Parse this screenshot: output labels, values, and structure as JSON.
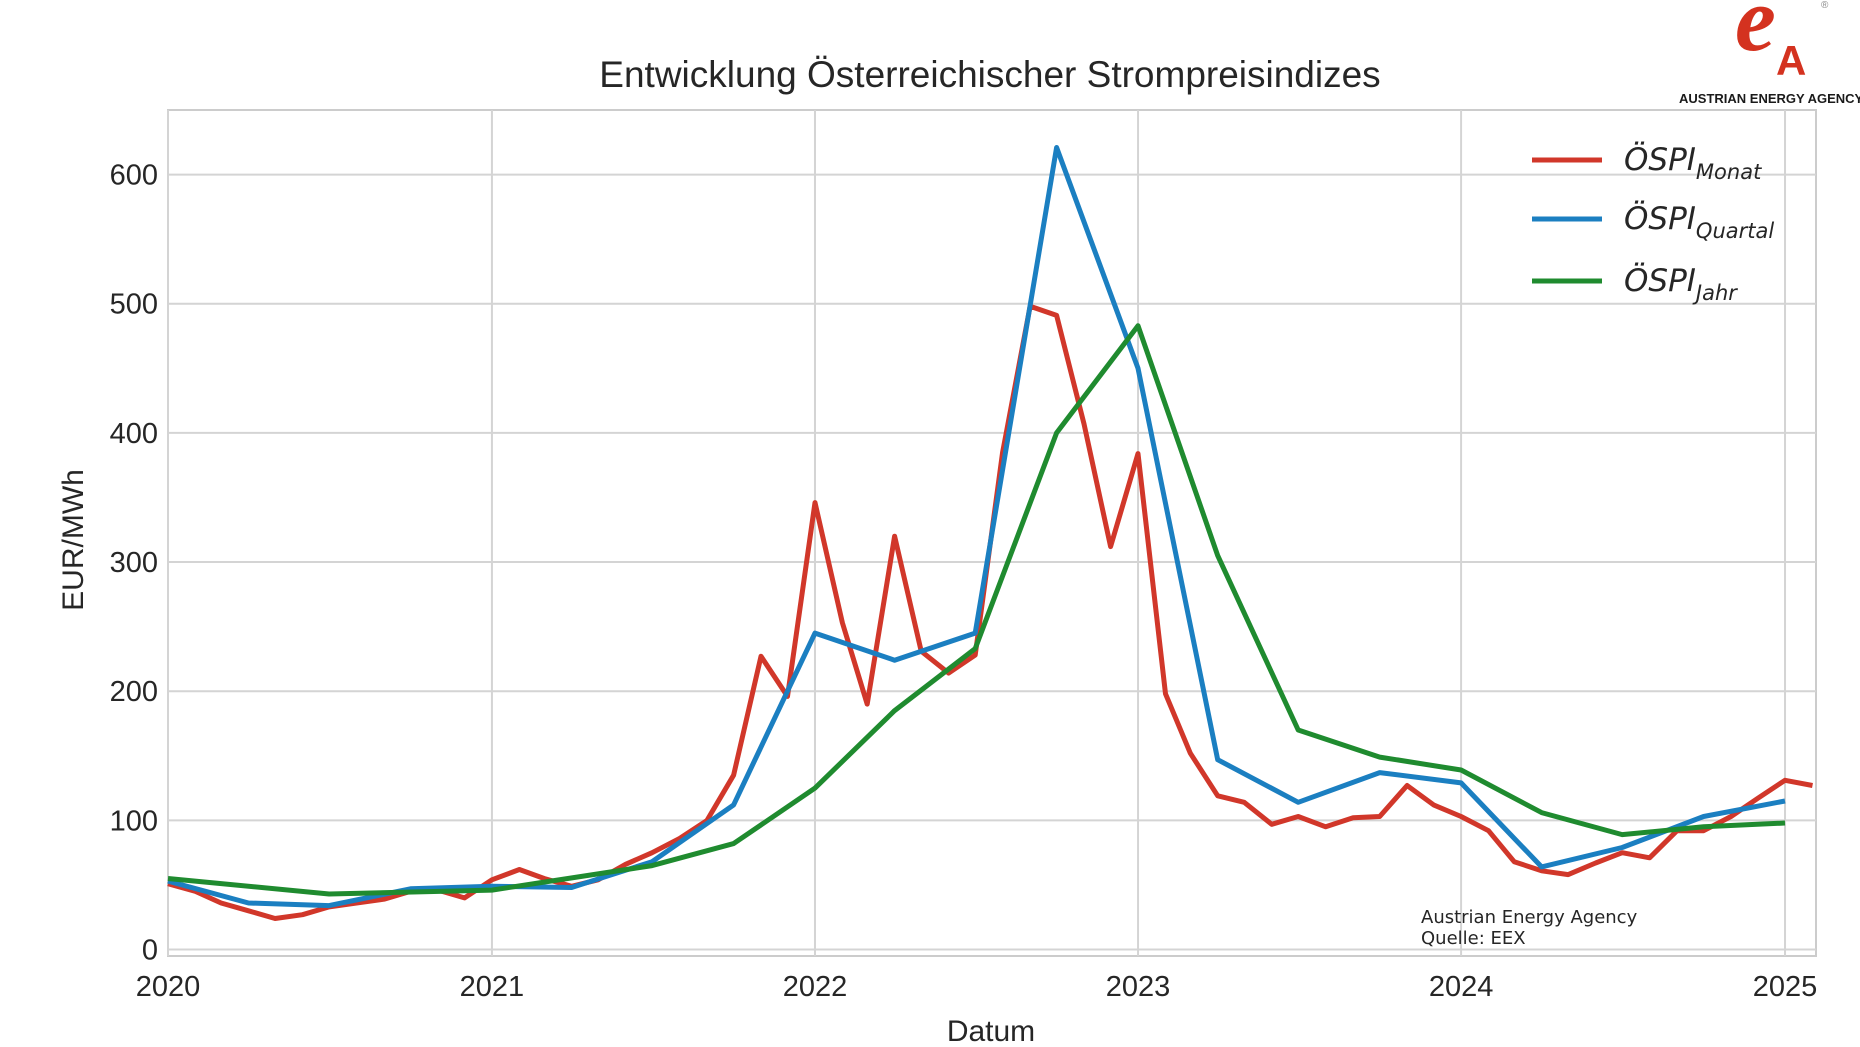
{
  "logo": {
    "text": "AUSTRIAN ENERGY AGENCY",
    "mark": "eA",
    "color": "#d4321f"
  },
  "annotation": {
    "line1": "Austrian Energy Agency",
    "line2": "Quelle: EEX"
  },
  "chart_data": {
    "type": "line",
    "title": "Entwicklung Österreichischer Strompreisindizes",
    "xlabel": "Datum",
    "ylabel": "EUR/MWh",
    "xlim": [
      "2020-01-01",
      "2025-02-05"
    ],
    "ylim": [
      -5,
      650
    ],
    "x_ticks": [
      "2020",
      "2021",
      "2022",
      "2023",
      "2024",
      "2025"
    ],
    "y_ticks": [
      0,
      100,
      200,
      300,
      400,
      500,
      600
    ],
    "grid": true,
    "legend_position": "top-right",
    "series": [
      {
        "name": "ÖSPI",
        "subscript": "Monat",
        "color": "#d1372a",
        "points": [
          [
            "2020-01-01",
            51
          ],
          [
            "2020-02-01",
            45
          ],
          [
            "2020-03-01",
            36
          ],
          [
            "2020-04-01",
            30
          ],
          [
            "2020-05-01",
            24
          ],
          [
            "2020-06-01",
            27
          ],
          [
            "2020-07-01",
            33
          ],
          [
            "2020-08-01",
            36
          ],
          [
            "2020-09-01",
            39
          ],
          [
            "2020-10-01",
            45
          ],
          [
            "2020-11-01",
            46
          ],
          [
            "2020-12-01",
            40
          ],
          [
            "2021-01-01",
            54
          ],
          [
            "2021-02-01",
            62
          ],
          [
            "2021-03-01",
            55
          ],
          [
            "2021-04-01",
            49
          ],
          [
            "2021-05-01",
            54
          ],
          [
            "2021-06-01",
            66
          ],
          [
            "2021-07-01",
            75
          ],
          [
            "2021-08-01",
            86
          ],
          [
            "2021-09-01",
            100
          ],
          [
            "2021-10-01",
            135
          ],
          [
            "2021-11-01",
            227
          ],
          [
            "2021-12-01",
            196
          ],
          [
            "2022-01-01",
            346
          ],
          [
            "2022-02-01",
            253
          ],
          [
            "2022-03-01",
            190
          ],
          [
            "2022-04-01",
            320
          ],
          [
            "2022-05-01",
            231
          ],
          [
            "2022-06-01",
            214
          ],
          [
            "2022-07-01",
            228
          ],
          [
            "2022-08-01",
            385
          ],
          [
            "2022-09-01",
            498
          ],
          [
            "2022-10-01",
            491
          ],
          [
            "2022-11-01",
            407
          ],
          [
            "2022-12-01",
            312
          ],
          [
            "2023-01-01",
            384
          ],
          [
            "2023-02-01",
            198
          ],
          [
            "2023-03-01",
            152
          ],
          [
            "2023-04-01",
            119
          ],
          [
            "2023-05-01",
            114
          ],
          [
            "2023-06-01",
            97
          ],
          [
            "2023-07-01",
            103
          ],
          [
            "2023-08-01",
            95
          ],
          [
            "2023-09-01",
            102
          ],
          [
            "2023-10-01",
            103
          ],
          [
            "2023-11-01",
            127
          ],
          [
            "2023-12-01",
            112
          ],
          [
            "2024-01-01",
            103
          ],
          [
            "2024-02-01",
            92
          ],
          [
            "2024-03-01",
            68
          ],
          [
            "2024-04-01",
            61
          ],
          [
            "2024-05-01",
            58
          ],
          [
            "2024-06-01",
            67
          ],
          [
            "2024-07-01",
            75
          ],
          [
            "2024-08-01",
            71
          ],
          [
            "2024-09-01",
            92
          ],
          [
            "2024-10-01",
            92
          ],
          [
            "2024-11-01",
            103
          ],
          [
            "2024-12-01",
            117
          ],
          [
            "2025-01-01",
            131
          ],
          [
            "2025-02-01",
            127
          ]
        ]
      },
      {
        "name": "ÖSPI",
        "subscript": "Quartal",
        "color": "#1b7fc1",
        "points": [
          [
            "2020-01-01",
            53
          ],
          [
            "2020-04-01",
            36
          ],
          [
            "2020-07-01",
            34
          ],
          [
            "2020-10-01",
            47
          ],
          [
            "2021-01-01",
            49
          ],
          [
            "2021-04-01",
            48
          ],
          [
            "2021-07-01",
            68
          ],
          [
            "2021-10-01",
            112
          ],
          [
            "2022-01-01",
            245
          ],
          [
            "2022-04-01",
            224
          ],
          [
            "2022-07-01",
            245
          ],
          [
            "2022-10-01",
            621
          ],
          [
            "2023-01-01",
            450
          ],
          [
            "2023-04-01",
            147
          ],
          [
            "2023-07-01",
            114
          ],
          [
            "2023-10-01",
            137
          ],
          [
            "2024-01-01",
            129
          ],
          [
            "2024-04-01",
            64
          ],
          [
            "2024-07-01",
            79
          ],
          [
            "2024-10-01",
            103
          ],
          [
            "2025-01-01",
            115
          ]
        ]
      },
      {
        "name": "ÖSPI",
        "subscript": "Jahr",
        "color": "#1f8b2f",
        "points": [
          [
            "2020-01-01",
            55
          ],
          [
            "2020-07-01",
            43
          ],
          [
            "2021-01-01",
            46
          ],
          [
            "2021-07-01",
            65
          ],
          [
            "2021-10-01",
            82
          ],
          [
            "2022-01-01",
            125
          ],
          [
            "2022-04-01",
            185
          ],
          [
            "2022-07-01",
            233
          ],
          [
            "2022-10-01",
            400
          ],
          [
            "2023-01-01",
            483
          ],
          [
            "2023-04-01",
            305
          ],
          [
            "2023-07-01",
            170
          ],
          [
            "2023-10-01",
            149
          ],
          [
            "2024-01-01",
            139
          ],
          [
            "2024-04-01",
            106
          ],
          [
            "2024-07-01",
            89
          ],
          [
            "2024-10-01",
            95
          ],
          [
            "2025-01-01",
            98
          ]
        ]
      }
    ]
  }
}
